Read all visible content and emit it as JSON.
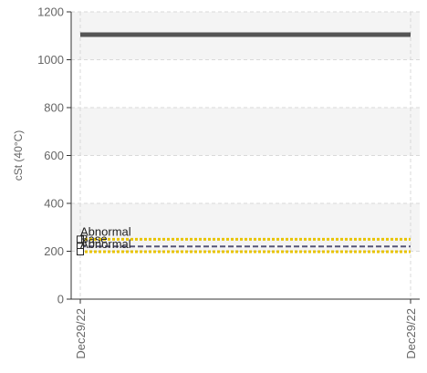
{
  "chart_data": {
    "type": "line",
    "title": "",
    "xlabel": "",
    "ylabel": "cSt (40°C)",
    "ylim": [
      0,
      1200
    ],
    "yticks": [
      0,
      200,
      400,
      600,
      800,
      1000,
      1200
    ],
    "x_categories": [
      "Dec29/22",
      "Dec29/22"
    ],
    "grid": true,
    "legend": "none",
    "series": [
      {
        "values": [
          1105,
          1105
        ],
        "color": "#555555",
        "style": "solid"
      }
    ],
    "reference_lines": [
      {
        "label": "Abnormal",
        "value": 250,
        "color": "#e8c400",
        "style": "dotted"
      },
      {
        "label": "Base",
        "value": 220,
        "color": "#555577",
        "style": "dashed"
      },
      {
        "label": "Abnormal",
        "value": 198,
        "color": "#e8c400",
        "style": "dotted"
      }
    ]
  }
}
